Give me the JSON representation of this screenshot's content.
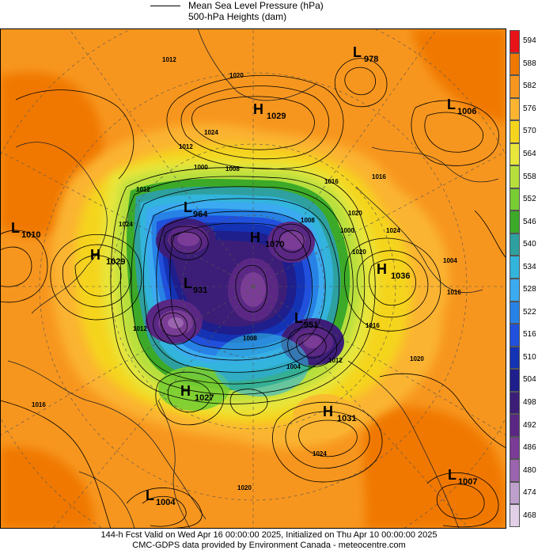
{
  "legend": {
    "line1": "Mean Sea Level Pressure (hPa)",
    "line2": "500-hPa Heights (dam)"
  },
  "footer": {
    "line1": "144-h Fcst Valid on Wed Apr 16 00:00:00 2025, Initialized on Thu Apr 10 00:00:00 2025",
    "line2": "CMC-GDPS data provided by Environment Canada - meteocentre.com"
  },
  "colorbar": {
    "levels": [
      "594",
      "588",
      "582",
      "576",
      "570",
      "564",
      "558",
      "552",
      "546",
      "540",
      "534",
      "528",
      "522",
      "516",
      "510",
      "504",
      "498",
      "492",
      "486",
      "480",
      "474",
      "468"
    ],
    "colors": [
      "#e8141a",
      "#f07800",
      "#f7961e",
      "#fbb432",
      "#f5d41e",
      "#e8e63c",
      "#b6df3c",
      "#78cd32",
      "#3caa28",
      "#2ea0a0",
      "#32b4dc",
      "#3caaf0",
      "#2882e6",
      "#2050dc",
      "#1432b4",
      "#1e1e8c",
      "#3c1e78",
      "#5a2884",
      "#7a3c96",
      "#9a64ae",
      "#bea0cc",
      "#e2d0e8"
    ]
  },
  "pressure_centers": [
    {
      "type": "L",
      "value": "978"
    },
    {
      "type": "H",
      "value": "1029"
    },
    {
      "type": "L",
      "value": "1006"
    },
    {
      "type": "L",
      "value": "1010"
    },
    {
      "type": "H",
      "value": "1029"
    },
    {
      "type": "L",
      "value": "964"
    },
    {
      "type": "H",
      "value": "1070"
    },
    {
      "type": "L",
      "value": "931"
    },
    {
      "type": "L",
      "value": "951"
    },
    {
      "type": "H",
      "value": "1036"
    },
    {
      "type": "H",
      "value": "1027"
    },
    {
      "type": "H",
      "value": "1031"
    },
    {
      "type": "L",
      "value": "1004"
    },
    {
      "type": "L",
      "value": "1007"
    }
  ],
  "isobar_labels": [
    "1012",
    "1020",
    "1024",
    "1012",
    "1000",
    "1008",
    "1016",
    "1012",
    "1016",
    "1024",
    "1020",
    "1000",
    "1008",
    "1024",
    "1020",
    "1004",
    "1016",
    "1020",
    "1016",
    "1012",
    "1008",
    "1004",
    "1012",
    "1024",
    "1020",
    "1016"
  ]
}
